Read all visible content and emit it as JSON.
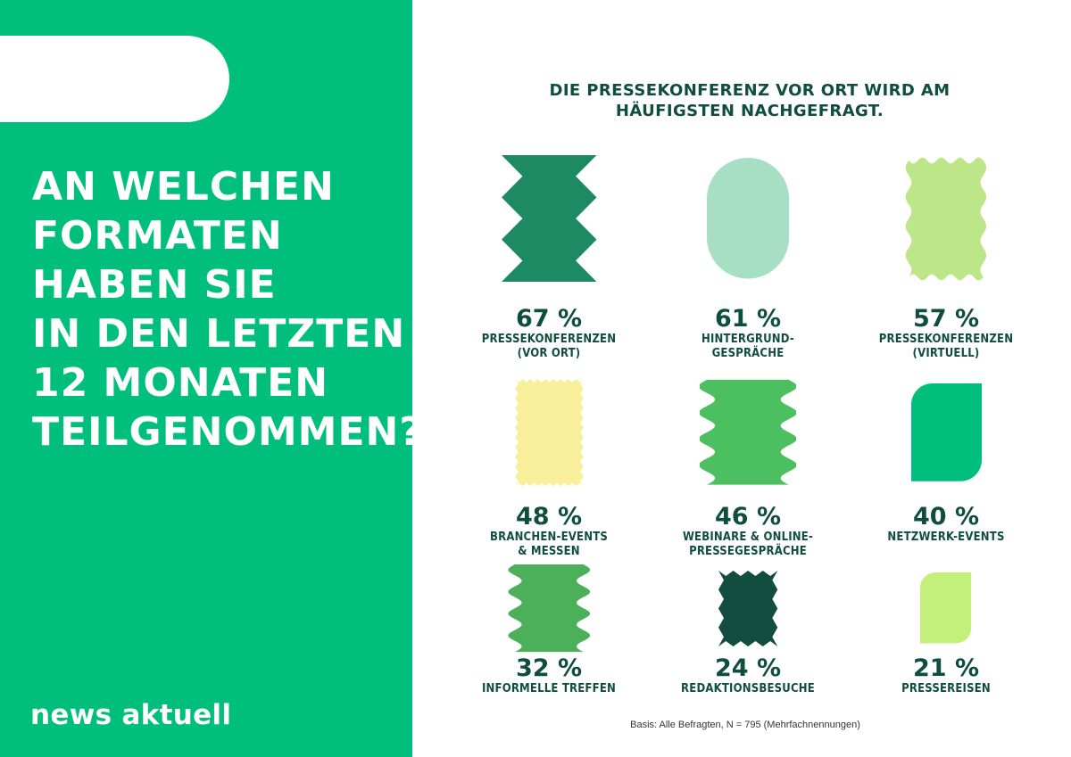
{
  "left_panel": {
    "question_lines": [
      "AN WELCHEN",
      "FORMATEN",
      "HABEN SIE",
      "IN DEN LETZTEN",
      "12 MONATEN",
      "TEILGENOMMEN?"
    ],
    "brand": "news aktuell",
    "background_color": "#00bf7d"
  },
  "headline": {
    "line1": "DIE PRESSEKONFERENZ VOR ORT WIRD AM",
    "line2": "HÄUFIGSTEN NACHGEFRAGT."
  },
  "footnote": "Basis: Alle Befragten, N = 795 (Mehrfachnennungen)",
  "chart_data": {
    "type": "pictogram",
    "unit": "%",
    "items": [
      {
        "label": "PRESSEKONFERENZEN\n(VOR ORT)",
        "value": 67,
        "display": "67 %",
        "shape": "zigzag-hourglass",
        "color": "#1d8a64"
      },
      {
        "label": "HINTERGRUND-\nGESPRÄCHE",
        "value": 61,
        "display": "61 %",
        "shape": "rounded-capsule",
        "color": "#a6dfc3"
      },
      {
        "label": "PRESSEKONFERENZEN\n(VIRTUELL)",
        "value": 57,
        "display": "57 %",
        "shape": "wavy-square",
        "color": "#bde689"
      },
      {
        "label": "BRANCHEN-EVENTS\n& MESSEN",
        "value": 48,
        "display": "48 %",
        "shape": "zigzag-stamp",
        "color": "#f7ef9a"
      },
      {
        "label": "WEBINARE & ONLINE-\nPRESSEGESPRÄCHE",
        "value": 46,
        "display": "46 %",
        "shape": "wavy-sides",
        "color": "#4cbf60"
      },
      {
        "label": "NETZWERK-EVENTS",
        "value": 40,
        "display": "40 %",
        "shape": "leaf-square",
        "color": "#00bf7d"
      },
      {
        "label": "INFORMELLE TREFFEN",
        "value": 32,
        "display": "32 %",
        "shape": "wavy-sides",
        "color": "#4caf5a"
      },
      {
        "label": "REDAKTIONSBESUCHE",
        "value": 24,
        "display": "24 %",
        "shape": "zigzag-tall",
        "color": "#124d3f"
      },
      {
        "label": "PRESSEREISEN",
        "value": 21,
        "display": "21 %",
        "shape": "leaf-square",
        "color": "#c2f07a"
      }
    ]
  }
}
